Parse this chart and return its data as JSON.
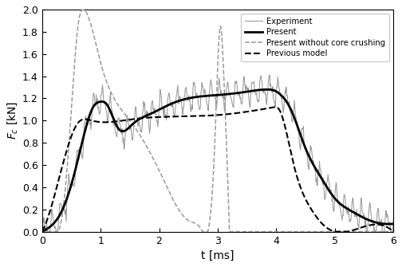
{
  "title": "",
  "xlabel": "t [ms]",
  "ylabel": "$F_c$ [kN]",
  "xlim": [
    0,
    6
  ],
  "ylim": [
    0,
    2.0
  ],
  "xticks": [
    0,
    1,
    2,
    3,
    4,
    5,
    6
  ],
  "yticks": [
    0.0,
    0.2,
    0.4,
    0.6,
    0.8,
    1.0,
    1.2,
    1.4,
    1.6,
    1.8,
    2.0
  ],
  "legend_entries": [
    "Experiment",
    "Present",
    "Present without core crushing",
    "Previous model"
  ],
  "color_experiment": "#999999",
  "color_present": "#000000",
  "color_nocore": "#999999",
  "color_previous": "#000000",
  "present_knots_t": [
    0.0,
    0.15,
    0.35,
    0.55,
    0.72,
    0.87,
    1.0,
    1.1,
    1.3,
    1.55,
    1.85,
    2.2,
    2.6,
    3.0,
    3.5,
    3.85,
    3.97,
    4.1,
    4.25,
    4.5,
    4.75,
    5.0,
    5.3,
    5.6,
    5.85,
    6.0
  ],
  "present_knots_y": [
    0.0,
    0.05,
    0.2,
    0.52,
    0.88,
    1.12,
    1.17,
    1.15,
    0.93,
    0.97,
    1.06,
    1.15,
    1.21,
    1.23,
    1.26,
    1.28,
    1.27,
    1.22,
    1.1,
    0.75,
    0.5,
    0.3,
    0.18,
    0.1,
    0.07,
    0.07
  ],
  "previous_knots_t": [
    0.0,
    0.3,
    0.6,
    0.85,
    1.5,
    3.0,
    3.5,
    3.95,
    4.05,
    4.3,
    4.6,
    4.85,
    5.0,
    6.0
  ],
  "previous_knots_y": [
    0.0,
    0.5,
    0.97,
    1.0,
    1.01,
    1.05,
    1.08,
    1.12,
    1.1,
    0.6,
    0.2,
    0.04,
    0.0,
    0.0
  ],
  "nocore_knots_t": [
    0.0,
    0.28,
    0.38,
    0.5,
    0.62,
    0.7,
    1.0,
    1.5,
    2.0,
    2.5,
    2.72,
    2.83,
    2.95,
    3.05,
    3.1,
    3.2,
    6.0
  ],
  "nocore_knots_y": [
    0.0,
    0.0,
    0.3,
    1.1,
    1.88,
    2.0,
    1.52,
    1.0,
    0.55,
    0.1,
    0.02,
    0.0,
    0.8,
    1.85,
    1.45,
    0.0,
    0.0
  ],
  "exp_noise_freq1": 7.0,
  "exp_noise_amp1": 0.09,
  "exp_noise_freq2": 14.0,
  "exp_noise_amp2": 0.05,
  "figsize": [
    5.04,
    3.35
  ],
  "dpi": 100
}
